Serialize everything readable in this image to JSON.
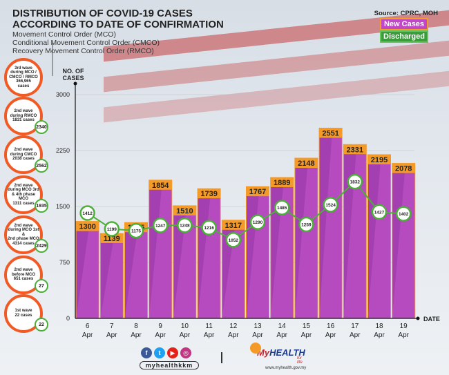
{
  "header": {
    "title_line1": "DISTRIBUTION OF COVID-19 CASES",
    "title_line2": "ACCORDING TO DATE OF CONFIRMATION",
    "sub1": "Movement Control Order (MCO)",
    "sub2": "Conditional Movement Control Order (CMCO)",
    "sub3": "Recovery Movement Control Order (RMCO)",
    "source": "Source: CPRC, MOH"
  },
  "legend": {
    "new_cases": "New Cases",
    "discharged": "Discharged"
  },
  "side_panel": [
    {
      "text": "3rd wave\nduring MCO /\nCMCO / RMCO\n366,965\ncases",
      "badge": ""
    },
    {
      "text": "2nd wave\nduring RMCO\n1831 cases",
      "badge": "2340"
    },
    {
      "text": "2nd wave\nduring CMCO\n2038 cases",
      "badge": "2562"
    },
    {
      "text": "2nd wave\nduring MCO 3rd\n& 4th phase MCO\n1311 cases",
      "badge": "1935"
    },
    {
      "text": "2nd wave\nduring MCO 1st &\n2nd phase MCO\n4314 cases",
      "badge": "2429"
    },
    {
      "text": "2nd wave\nbefore MCO\n651 cases",
      "badge": "27"
    },
    {
      "text": "1st wave\n22 cases",
      "badge": "22"
    }
  ],
  "colors": {
    "bar": "#a33fb0",
    "bar_light": "#c455cc",
    "bar_cap": "#f39a28",
    "line": "#4caf3a",
    "accent": "#f15a24"
  },
  "footer": {
    "handle": "myhealthkkm",
    "logo_my": "My",
    "logo_health": "HEALTH",
    "logo_tag": "for life",
    "logo_url": "www.myhealth.gov.my"
  },
  "chart_data": {
    "type": "bar",
    "title": "Distribution of COVID-19 cases according to date of confirmation",
    "ylabel": "NO. OF CASES",
    "xlabel": "DATE",
    "ylim": [
      0,
      3000
    ],
    "yticks": [
      0,
      750,
      1500,
      2250,
      3000
    ],
    "categories": [
      "6 Apr",
      "7 Apr",
      "8 Apr",
      "9 Apr",
      "10 Apr",
      "11 Apr",
      "12 Apr",
      "13 Apr",
      "14 Apr",
      "15 Apr",
      "16 Apr",
      "17 Apr",
      "18 Apr",
      "19 Apr"
    ],
    "cat_day": [
      "6",
      "7",
      "8",
      "9",
      "10",
      "11",
      "12",
      "13",
      "14",
      "15",
      "16",
      "17",
      "18",
      "19"
    ],
    "cat_month": "Apr",
    "series": [
      {
        "name": "New Cases",
        "type": "bar",
        "values": [
          1300,
          1139,
          1285,
          1854,
          1510,
          1739,
          1317,
          1767,
          1889,
          2148,
          2551,
          2331,
          2195,
          2078
        ]
      },
      {
        "name": "Discharged",
        "type": "line",
        "values": [
          1412,
          1199,
          1175,
          1247,
          1248,
          1216,
          1052,
          1290,
          1485,
          1259,
          1524,
          1832,
          1427,
          1402
        ]
      }
    ]
  }
}
